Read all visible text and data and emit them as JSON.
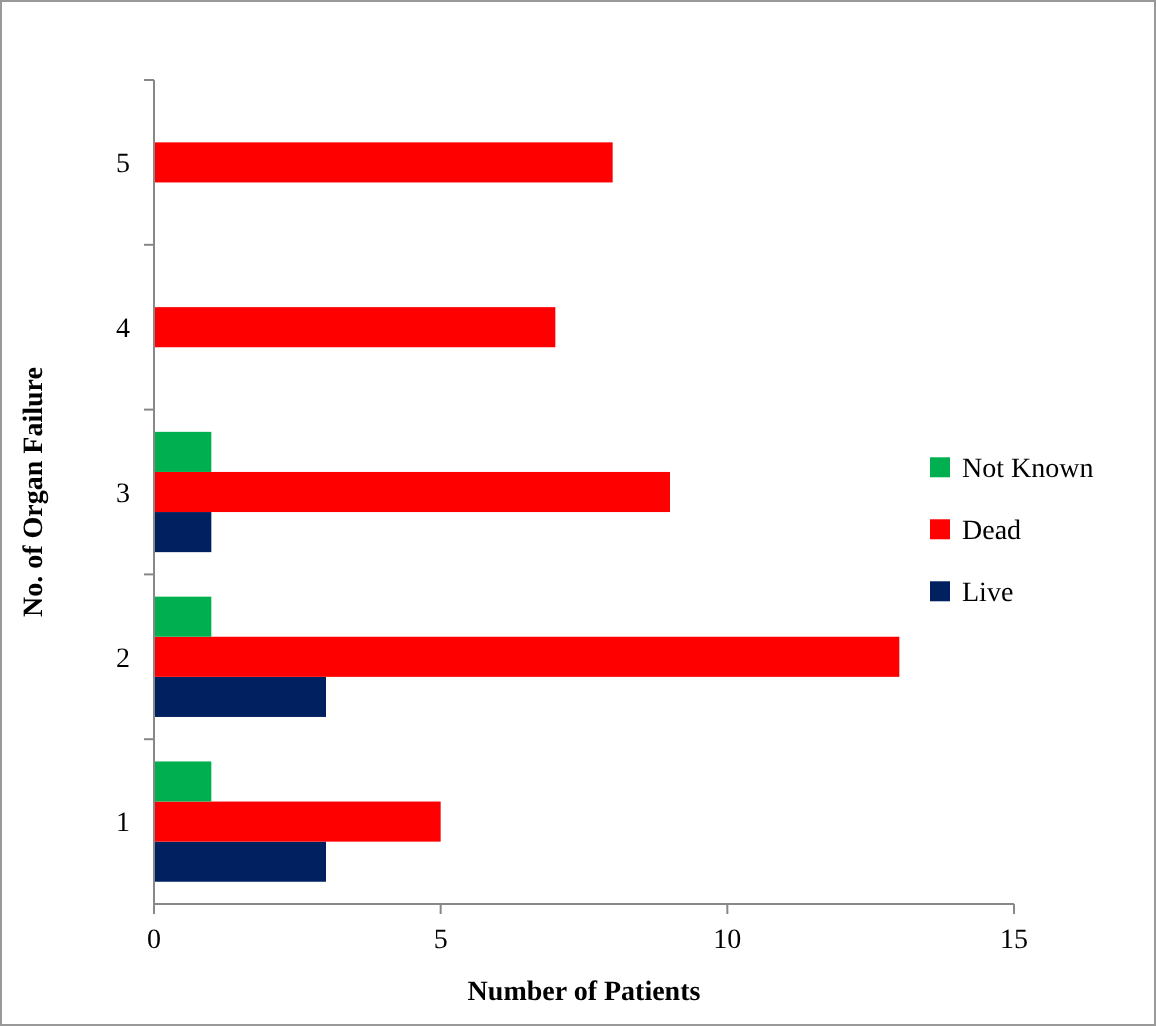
{
  "chart_data": {
    "type": "bar",
    "orientation": "horizontal",
    "categories": [
      "5",
      "4",
      "3",
      "2",
      "1"
    ],
    "series": [
      {
        "name": "Live",
        "color": "#002060",
        "values": [
          0,
          0,
          1,
          3,
          3
        ]
      },
      {
        "name": "Dead",
        "color": "#ff0000",
        "values": [
          8,
          7,
          9,
          13,
          5
        ]
      },
      {
        "name": "Not Known",
        "color": "#00b050",
        "values": [
          0,
          0,
          1,
          1,
          1
        ]
      }
    ],
    "xlim": [
      0,
      15
    ],
    "xticks": [
      0,
      5,
      10,
      15
    ],
    "xlabel": "Number of Patients",
    "ylabel": "No. of Organ Failure",
    "grid": false,
    "legend": "right"
  }
}
